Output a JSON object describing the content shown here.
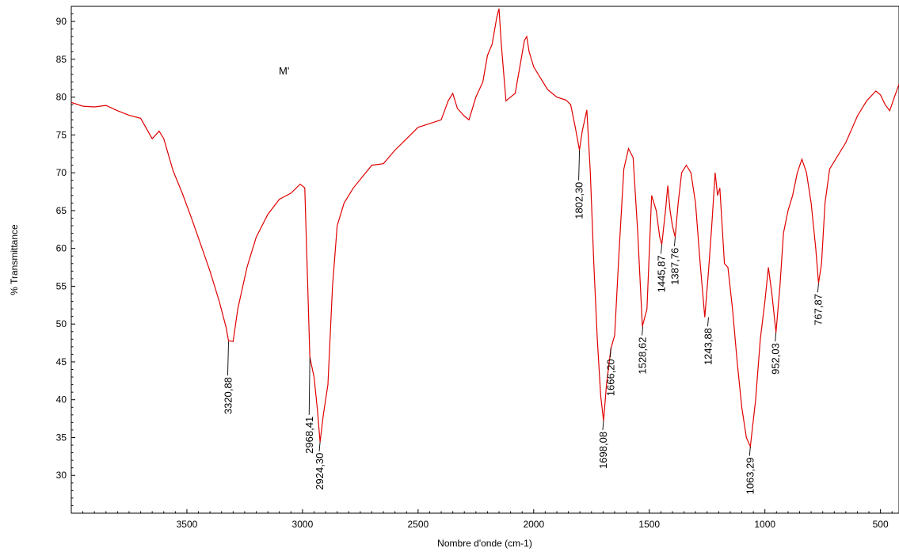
{
  "chart_data": {
    "type": "line",
    "title": "",
    "sample_label": "M'",
    "xlabel": "Nombre d'onde (cm-1)",
    "ylabel": "% Transmittance",
    "xlim": [
      4000,
      420
    ],
    "ylim": [
      25,
      92
    ],
    "x_ticks": [
      3500,
      3000,
      2500,
      2000,
      1500,
      1000,
      500
    ],
    "y_ticks": [
      30,
      35,
      40,
      45,
      50,
      55,
      60,
      65,
      70,
      75,
      80,
      85,
      90
    ],
    "grid": false,
    "line_color": "#e00000",
    "series": [
      {
        "x": [
          4000,
          3950,
          3900,
          3850,
          3800,
          3750,
          3700,
          3650,
          3620,
          3600,
          3560,
          3520,
          3480,
          3440,
          3400,
          3360,
          3330,
          3320,
          3300,
          3280,
          3240,
          3200,
          3150,
          3100,
          3050,
          3010,
          2990,
          2968,
          2950,
          2935,
          2924,
          2910,
          2890,
          2870,
          2850,
          2820,
          2780,
          2740,
          2700,
          2650,
          2600,
          2550,
          2500,
          2450,
          2400,
          2370,
          2350,
          2330,
          2300,
          2280,
          2250,
          2220,
          2200,
          2180,
          2160,
          2150,
          2140,
          2120,
          2100,
          2080,
          2060,
          2040,
          2030,
          2020,
          2000,
          1980,
          1960,
          1940,
          1920,
          1900,
          1880,
          1860,
          1840,
          1820,
          1802,
          1790,
          1770,
          1755,
          1740,
          1725,
          1710,
          1698,
          1685,
          1666,
          1650,
          1630,
          1610,
          1590,
          1570,
          1550,
          1530,
          1510,
          1490,
          1470,
          1455,
          1446,
          1430,
          1420,
          1410,
          1400,
          1388,
          1375,
          1360,
          1340,
          1320,
          1300,
          1280,
          1260,
          1244,
          1230,
          1215,
          1205,
          1195,
          1185,
          1175,
          1160,
          1140,
          1120,
          1100,
          1080,
          1063,
          1040,
          1020,
          1000,
          985,
          970,
          952,
          935,
          920,
          900,
          880,
          860,
          840,
          820,
          800,
          780,
          768,
          755,
          740,
          720,
          700,
          650,
          600,
          560,
          520,
          500,
          480,
          460,
          440,
          420
        ],
        "y": [
          79.3,
          78.8,
          78.7,
          78.9,
          78.2,
          77.6,
          77.2,
          74.5,
          75.5,
          74.5,
          70.3,
          67.3,
          64.0,
          60.5,
          57.0,
          53.0,
          49.5,
          47.8,
          47.7,
          52.0,
          57.5,
          61.5,
          64.5,
          66.5,
          67.3,
          68.5,
          68.0,
          45.6,
          43.0,
          38.5,
          34.4,
          38.0,
          42.0,
          55.0,
          63.0,
          66.0,
          68.0,
          69.5,
          71.0,
          71.2,
          73.0,
          74.5,
          76.0,
          76.5,
          77.0,
          79.5,
          80.5,
          78.5,
          77.5,
          77.0,
          80.0,
          82.0,
          85.5,
          87.0,
          90.5,
          91.7,
          87.0,
          79.5,
          80.0,
          80.5,
          84.0,
          87.5,
          88.0,
          86.0,
          84.0,
          83.0,
          82.0,
          81.0,
          80.5,
          80.0,
          79.8,
          79.6,
          79.0,
          76.0,
          73.0,
          75.5,
          78.3,
          70.0,
          58.0,
          48.0,
          40.5,
          37.2,
          42.0,
          46.8,
          48.5,
          60.0,
          70.5,
          73.2,
          72.0,
          62.0,
          49.7,
          52.0,
          67.0,
          65.0,
          61.5,
          60.5,
          65.0,
          68.3,
          65.0,
          63.0,
          61.5,
          66.0,
          70.0,
          71.0,
          70.0,
          66.0,
          58.0,
          50.9,
          57.0,
          63.0,
          70.0,
          67.0,
          68.0,
          63.0,
          58.0,
          57.5,
          52.0,
          45.0,
          39.0,
          35.0,
          33.8,
          40.0,
          48.0,
          53.0,
          57.5,
          54.0,
          48.9,
          55.0,
          62.0,
          65.0,
          67.0,
          70.0,
          71.8,
          70.0,
          66.0,
          60.0,
          55.4,
          58.0,
          66.0,
          70.5,
          71.5,
          74.0,
          77.5,
          79.5,
          80.8,
          80.3,
          79.0,
          78.2,
          80.0,
          81.7
        ]
      }
    ],
    "annotations": [
      {
        "text": "3320,88",
        "x": 3320,
        "y": 47.7,
        "tip": 43.2
      },
      {
        "text": "2968,41",
        "x": 2968,
        "y": 45.6,
        "tip": 38.0
      },
      {
        "text": "2924,30",
        "x": 2924,
        "y": 34.4,
        "tip": 33.2
      },
      {
        "text": "1802,30",
        "x": 1802,
        "y": 73.0,
        "tip": 69.0
      },
      {
        "text": "1698,08",
        "x": 1698,
        "y": 37.2,
        "tip": 36.0
      },
      {
        "text": "1666,20",
        "x": 1666,
        "y": 46.8,
        "tip": 45.6
      },
      {
        "text": "1528,62",
        "x": 1528,
        "y": 49.7,
        "tip": 48.5
      },
      {
        "text": "1445,87",
        "x": 1446,
        "y": 60.5,
        "tip": 59.3
      },
      {
        "text": "1387,76",
        "x": 1388,
        "y": 61.5,
        "tip": 60.3
      },
      {
        "text": "1243,88",
        "x": 1244,
        "y": 50.9,
        "tip": 49.7
      },
      {
        "text": "1063,29",
        "x": 1063,
        "y": 33.8,
        "tip": 32.6
      },
      {
        "text": "952,03",
        "x": 952,
        "y": 48.9,
        "tip": 47.7
      },
      {
        "text": "767,87",
        "x": 768,
        "y": 55.4,
        "tip": 54.2
      }
    ]
  }
}
